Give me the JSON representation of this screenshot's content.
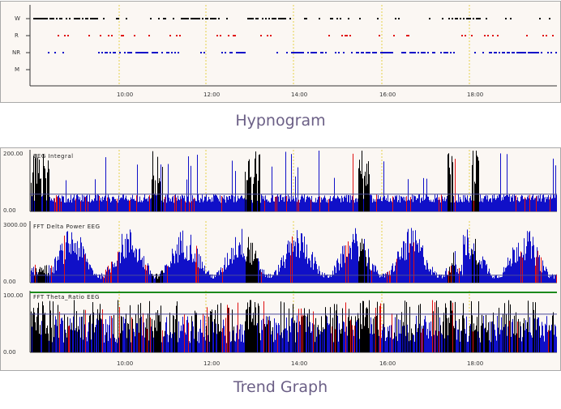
{
  "captions": {
    "top": "Hypnogram",
    "bottom": "Trend Graph"
  },
  "colors": {
    "wake": "#000000",
    "rem": "#e01010",
    "nrem": "#1010c8",
    "grid": "#e6d14a",
    "green_line": "#1c8a1c"
  },
  "time_axis": {
    "ticks": [
      "10:00",
      "12:00",
      "14:00",
      "16:00",
      "18:00"
    ]
  },
  "hypnogram": {
    "stages": [
      "W",
      "R",
      "NR",
      "M"
    ]
  },
  "trends": [
    {
      "title": "EEG Integral",
      "ymax_label": "200.00",
      "ymin_label": "0.00"
    },
    {
      "title": "FFT Delta Power EEG",
      "ymax_label": "3000.00",
      "ymin_label": "0.00"
    },
    {
      "title": "FFT Theta_Ratio EEG",
      "ymax_label": "100.00",
      "ymin_label": "0.00"
    }
  ],
  "chart_data": {
    "type": "line",
    "x": [
      "10:00",
      "12:00",
      "14:00",
      "16:00",
      "18:00"
    ],
    "series": [
      {
        "name": "W"
      },
      {
        "name": "R"
      },
      {
        "name": "NR"
      }
    ],
    "ylim": [
      0,
      200
    ]
  }
}
